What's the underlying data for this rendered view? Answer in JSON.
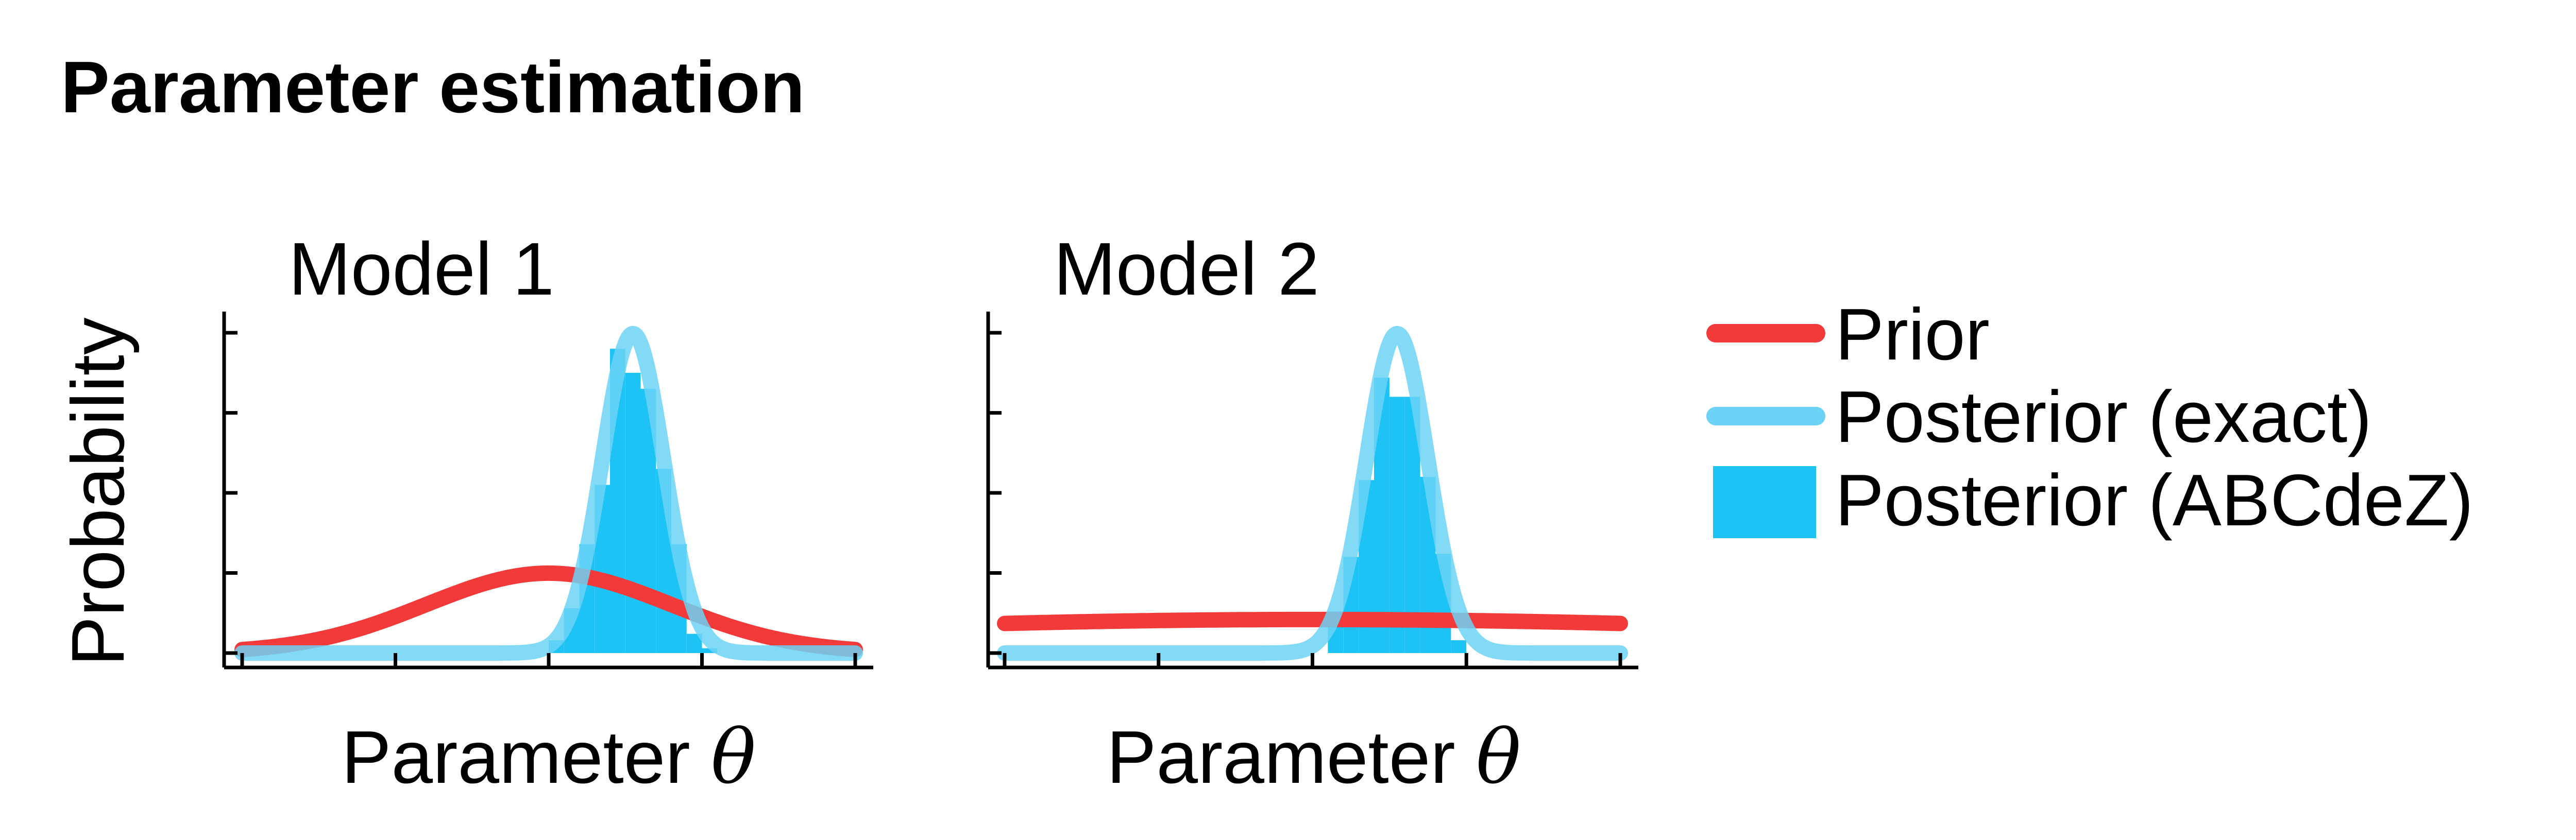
{
  "figure_title": "Parameter estimation",
  "ylabel": "Probability",
  "xlabel_text": "Parameter ",
  "xlabel_symbol": "θ",
  "colors": {
    "prior": "#f23a3a",
    "posterior_exact": "#6cd3f6",
    "posterior_abc": "#1ec3f5"
  },
  "legend": [
    {
      "label": "Prior",
      "kind": "line",
      "color": "#f23a3a"
    },
    {
      "label": "Posterior (exact)",
      "kind": "line",
      "color": "#6cd3f6"
    },
    {
      "label": "Posterior (ABCdeZ)",
      "kind": "patch",
      "color": "#1ec3f5"
    }
  ],
  "chart_data": [
    {
      "type": "area",
      "title": "Model 1",
      "xlabel": "Parameter θ",
      "ylabel": "Probability",
      "xlim": [
        0,
        4
      ],
      "ylim": [
        0,
        2.1
      ],
      "xticks": [
        0,
        1,
        2,
        3,
        4
      ],
      "yticks": [
        0,
        0.5,
        1.0,
        1.5,
        2.0
      ],
      "tick_labels_shown": false,
      "series": [
        {
          "kind": "line",
          "dist": "normal",
          "mean": 2.0,
          "sd": 0.8,
          "x_range": [
            0,
            4
          ]
        },
        {
          "kind": "line",
          "dist": "normal",
          "mean": 2.55,
          "sd": 0.2,
          "x_range": [
            0,
            4
          ]
        },
        {
          "kind": "histogram",
          "bin_edges": [
            2.0,
            2.1,
            2.2,
            2.3,
            2.4,
            2.5,
            2.6,
            2.7,
            2.8,
            2.9,
            3.0,
            3.1
          ],
          "heights": [
            0.08,
            0.28,
            0.68,
            1.05,
            1.9,
            1.75,
            1.65,
            1.15,
            0.68,
            0.12,
            0.03
          ]
        }
      ]
    },
    {
      "type": "area",
      "title": "Model 2",
      "xlabel": "Parameter θ",
      "ylabel": "Probability",
      "xlim": [
        0,
        4
      ],
      "ylim": [
        0,
        2.1
      ],
      "xticks": [
        0,
        1,
        2,
        3,
        4
      ],
      "yticks": [
        0,
        0.5,
        1.0,
        1.5,
        2.0
      ],
      "tick_labels_shown": false,
      "series": [
        {
          "kind": "line",
          "dist": "normal",
          "mean": 2.0,
          "sd": 4.0,
          "scale": 2.1,
          "x_range": [
            0,
            4
          ]
        },
        {
          "kind": "line",
          "dist": "normal",
          "mean": 2.55,
          "sd": 0.2,
          "x_range": [
            0,
            4
          ]
        },
        {
          "kind": "histogram",
          "bin_edges": [
            2.1,
            2.2,
            2.3,
            2.4,
            2.5,
            2.6,
            2.7,
            2.8,
            2.9,
            3.0
          ],
          "heights": [
            0.26,
            0.6,
            1.08,
            1.72,
            1.6,
            1.6,
            1.1,
            0.62,
            0.08
          ]
        }
      ]
    }
  ]
}
